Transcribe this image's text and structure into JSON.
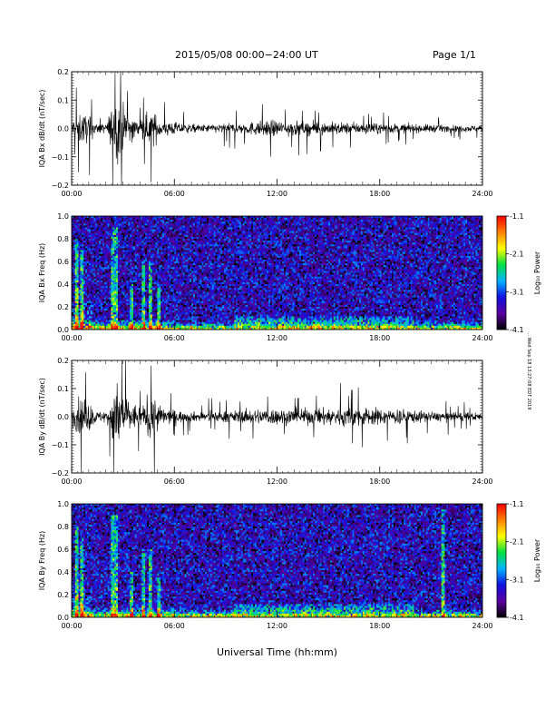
{
  "header": {
    "title": "2015/05/08  00:00−24:00 UT",
    "page": "Page 1/1"
  },
  "side_stamp": "… Wed Sep 18 13:27:08 EDT 2019",
  "xaxis": {
    "label": "Universal Time (hh:mm)",
    "range_hours": [
      0,
      24
    ],
    "ticks": [
      "00:00",
      "06:00",
      "12:00",
      "18:00",
      "24:00"
    ]
  },
  "colors": {
    "background": "#ffffff",
    "trace": "#000000",
    "colormap": [
      "#000000",
      "#5a00a0",
      "#1010e0",
      "#00b4ff",
      "#00e040",
      "#ffff00",
      "#ff8000",
      "#ff0000"
    ]
  },
  "colorbar": {
    "label": "Log₁₀ Power",
    "ticks": [
      "-1.1",
      "-2.1",
      "-3.1",
      "-4.1"
    ],
    "range": [
      -4.1,
      -1.1
    ]
  },
  "chart_data": [
    {
      "type": "line",
      "ylabel": "IQA Bx dB/dt (nT/sec)",
      "ylim": [
        -0.2,
        0.2
      ],
      "yticks": [
        "0.2",
        "0.1",
        "0.0",
        "−0.1",
        "−0.2"
      ],
      "ytick_values": [
        0.2,
        0.1,
        0.0,
        -0.1,
        -0.2
      ],
      "envelope": {
        "t_hours": [
          0,
          0.5,
          1.0,
          1.5,
          2.0,
          2.4,
          2.7,
          3.0,
          3.5,
          4.0,
          4.5,
          4.8,
          5.2,
          6,
          7,
          8,
          9,
          10,
          11,
          12,
          13,
          14,
          15,
          16,
          17,
          18,
          19,
          20,
          21,
          22,
          23,
          24
        ],
        "amplitude": [
          0.05,
          0.1,
          0.08,
          0.03,
          0.03,
          0.14,
          0.2,
          0.14,
          0.08,
          0.05,
          0.1,
          0.1,
          0.05,
          0.04,
          0.025,
          0.025,
          0.03,
          0.035,
          0.045,
          0.05,
          0.045,
          0.04,
          0.04,
          0.035,
          0.035,
          0.03,
          0.03,
          0.025,
          0.025,
          0.02,
          0.02,
          0.02
        ]
      }
    },
    {
      "type": "heatmap",
      "ylabel": "IQA Bx Freq (Hz)",
      "ylim": [
        0,
        1.0
      ],
      "yticks": [
        "1.0",
        "0.8",
        "0.6",
        "0.4",
        "0.2",
        "0.0"
      ],
      "ytick_values": [
        1.0,
        0.8,
        0.6,
        0.4,
        0.2,
        0.0
      ],
      "zlim": [
        -4.1,
        -1.1
      ],
      "bursts": [
        {
          "t_hours": 0.3,
          "height_hz": 0.8
        },
        {
          "t_hours": 0.6,
          "height_hz": 0.7
        },
        {
          "t_hours": 2.4,
          "height_hz": 0.9
        },
        {
          "t_hours": 2.6,
          "height_hz": 0.9
        },
        {
          "t_hours": 3.5,
          "height_hz": 0.4
        },
        {
          "t_hours": 4.2,
          "height_hz": 0.6
        },
        {
          "t_hours": 4.6,
          "height_hz": 0.6
        },
        {
          "t_hours": 5.1,
          "height_hz": 0.4
        }
      ]
    },
    {
      "type": "line",
      "ylabel": "IQA By dB/dt (nT/sec)",
      "ylim": [
        -0.2,
        0.2
      ],
      "yticks": [
        "0.2",
        "0.1",
        "0.0",
        "−0.1",
        "−0.2"
      ],
      "ytick_values": [
        0.2,
        0.1,
        0.0,
        -0.1,
        -0.2
      ],
      "envelope": {
        "t_hours": [
          0,
          0.5,
          1.0,
          1.5,
          2.0,
          2.4,
          2.7,
          3.0,
          3.5,
          4.0,
          4.5,
          4.8,
          5.2,
          6,
          7,
          8,
          9,
          10,
          11,
          12,
          13,
          14,
          15,
          16,
          17,
          18,
          19,
          20,
          21,
          22,
          23,
          24
        ],
        "amplitude": [
          0.05,
          0.12,
          0.09,
          0.03,
          0.04,
          0.16,
          0.2,
          0.15,
          0.09,
          0.06,
          0.12,
          0.14,
          0.06,
          0.04,
          0.03,
          0.03,
          0.035,
          0.04,
          0.05,
          0.05,
          0.05,
          0.05,
          0.055,
          0.06,
          0.06,
          0.05,
          0.05,
          0.04,
          0.03,
          0.03,
          0.025,
          0.025
        ]
      }
    },
    {
      "type": "heatmap",
      "ylabel": "IQA By Freq (Hz)",
      "ylim": [
        0,
        1.0
      ],
      "yticks": [
        "1.0",
        "0.8",
        "0.6",
        "0.4",
        "0.2",
        "0.0"
      ],
      "ytick_values": [
        1.0,
        0.8,
        0.6,
        0.4,
        0.2,
        0.0
      ],
      "zlim": [
        -4.1,
        -1.1
      ],
      "bursts": [
        {
          "t_hours": 0.3,
          "height_hz": 0.8
        },
        {
          "t_hours": 0.6,
          "height_hz": 0.7
        },
        {
          "t_hours": 2.4,
          "height_hz": 0.9
        },
        {
          "t_hours": 2.6,
          "height_hz": 0.9
        },
        {
          "t_hours": 3.5,
          "height_hz": 0.4
        },
        {
          "t_hours": 4.2,
          "height_hz": 0.6
        },
        {
          "t_hours": 4.6,
          "height_hz": 0.6
        },
        {
          "t_hours": 5.1,
          "height_hz": 0.4
        },
        {
          "t_hours": 21.7,
          "height_hz": 0.95
        }
      ]
    }
  ]
}
